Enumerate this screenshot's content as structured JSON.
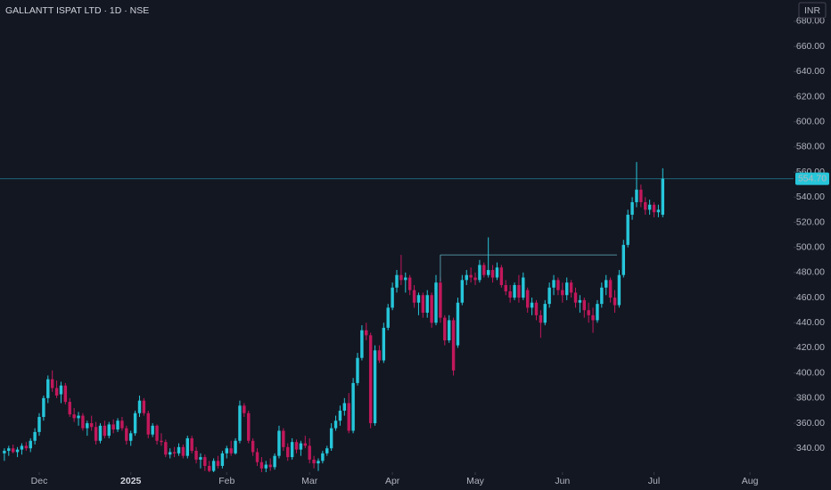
{
  "chart_data": {
    "type": "candlestick",
    "title": "GALLANTT ISPAT LTD · 1D · NSE",
    "currency": "INR",
    "up_color": "#26c6da",
    "down_color": "#c2185b",
    "xlim": [
      -1,
      181
    ],
    "xticks": [
      {
        "value": 8,
        "label": "Dec"
      },
      {
        "value": 29,
        "label": "2025"
      },
      {
        "value": 51,
        "label": "Feb"
      },
      {
        "value": 70,
        "label": "Mar"
      },
      {
        "value": 89,
        "label": "Apr"
      },
      {
        "value": 108,
        "label": "May"
      },
      {
        "value": 128,
        "label": "Jun"
      },
      {
        "value": 149,
        "label": "Jul"
      },
      {
        "value": 171,
        "label": "Aug"
      }
    ],
    "ylim": [
      321,
      697
    ],
    "yticks": [
      {
        "value": 340,
        "label": "340.00"
      },
      {
        "value": 360,
        "label": "360.00"
      },
      {
        "value": 380,
        "label": "380.00"
      },
      {
        "value": 400,
        "label": "400.00"
      },
      {
        "value": 420,
        "label": "420.00"
      },
      {
        "value": 440,
        "label": "440.00"
      },
      {
        "value": 460,
        "label": "460.00"
      },
      {
        "value": 480,
        "label": "480.00"
      },
      {
        "value": 500,
        "label": "500.00"
      },
      {
        "value": 520,
        "label": "520.00"
      },
      {
        "value": 540,
        "label": "540.00"
      },
      {
        "value": 560,
        "label": "560.00"
      },
      {
        "value": 580,
        "label": "580.00"
      },
      {
        "value": 600,
        "label": "600.00"
      },
      {
        "value": 620,
        "label": "620.00"
      },
      {
        "value": 640,
        "label": "640.00"
      },
      {
        "value": 660,
        "label": "660.00"
      },
      {
        "value": 680,
        "label": "680.00"
      }
    ],
    "open": [
      336,
      338,
      340,
      337,
      339,
      342,
      340,
      346,
      353,
      365,
      380,
      395,
      388,
      383,
      390,
      377,
      367,
      364,
      366,
      356,
      360,
      357,
      346,
      358,
      350,
      359,
      355,
      362,
      356,
      346,
      352,
      368,
      378,
      368,
      351,
      358,
      346,
      345,
      335,
      337,
      336,
      341,
      334,
      348,
      338,
      331,
      333,
      326,
      322,
      330,
      326,
      336,
      340,
      336,
      346,
      374,
      368,
      346,
      337,
      329,
      324,
      327,
      325,
      334,
      354,
      341,
      333,
      345,
      339,
      344,
      342,
      331,
      328,
      330,
      336,
      340,
      356,
      362,
      370,
      376,
      354,
      392,
      412,
      434,
      430,
      360,
      418,
      410,
      436,
      452,
      468,
      478,
      474,
      476,
      466,
      456,
      462,
      448,
      462,
      440,
      472,
      444,
      426,
      442,
      422,
      456,
      474,
      478,
      476,
      474,
      486,
      478,
      482,
      476,
      484,
      470,
      465,
      460,
      470,
      460,
      466,
      452,
      456,
      446,
      440,
      455,
      468,
      474,
      466,
      462,
      472,
      464,
      456,
      458,
      450,
      446,
      442,
      455,
      468,
      474,
      460,
      454,
      478,
      502,
      526,
      536,
      546,
      536,
      530,
      534,
      528,
      526
    ],
    "high": [
      340,
      342,
      343,
      341,
      344,
      345,
      348,
      356,
      368,
      382,
      398,
      402,
      394,
      393,
      392,
      380,
      372,
      369,
      368,
      362,
      366,
      361,
      360,
      362,
      361,
      363,
      364,
      365,
      358,
      354,
      370,
      382,
      380,
      370,
      360,
      359,
      352,
      347,
      340,
      341,
      344,
      343,
      350,
      350,
      341,
      336,
      335,
      330,
      332,
      334,
      338,
      342,
      346,
      348,
      378,
      376,
      370,
      348,
      340,
      333,
      330,
      332,
      336,
      358,
      356,
      344,
      348,
      347,
      346,
      350,
      348,
      334,
      332,
      338,
      342,
      360,
      366,
      374,
      380,
      384,
      396,
      416,
      438,
      440,
      432,
      422,
      422,
      440,
      455,
      472,
      482,
      494,
      480,
      478,
      470,
      464,
      464,
      466,
      464,
      478,
      476,
      446,
      446,
      444,
      460,
      478,
      482,
      484,
      480,
      490,
      488,
      508,
      486,
      488,
      486,
      474,
      470,
      472,
      478,
      480,
      468,
      460,
      458,
      450,
      458,
      472,
      478,
      476,
      472,
      476,
      474,
      468,
      462,
      460,
      456,
      452,
      458,
      472,
      478,
      476,
      466,
      482,
      506,
      530,
      540,
      568,
      550,
      540,
      538,
      536,
      534,
      563
    ],
    "low": [
      330,
      334,
      336,
      333,
      335,
      338,
      337,
      343,
      350,
      362,
      376,
      385,
      380,
      376,
      375,
      365,
      361,
      358,
      354,
      350,
      354,
      343,
      344,
      348,
      348,
      352,
      353,
      354,
      343,
      342,
      350,
      365,
      366,
      348,
      349,
      343,
      342,
      333,
      332,
      333,
      334,
      332,
      332,
      336,
      328,
      324,
      322,
      318,
      320,
      324,
      324,
      332,
      334,
      335,
      344,
      365,
      344,
      334,
      326,
      320,
      318,
      322,
      323,
      332,
      338,
      330,
      331,
      336,
      334,
      340,
      328,
      324,
      322,
      328,
      334,
      338,
      354,
      358,
      366,
      352,
      352,
      390,
      410,
      426,
      356,
      358,
      408,
      408,
      434,
      450,
      464,
      470,
      464,
      462,
      452,
      446,
      444,
      444,
      436,
      438,
      440,
      422,
      424,
      398,
      420,
      454,
      470,
      472,
      470,
      472,
      476,
      476,
      472,
      474,
      468,
      462,
      456,
      458,
      456,
      458,
      448,
      446,
      442,
      428,
      438,
      452,
      462,
      462,
      456,
      458,
      460,
      452,
      448,
      444,
      440,
      432,
      440,
      452,
      462,
      456,
      448,
      452,
      476,
      500,
      522,
      532,
      532,
      526,
      526,
      524,
      524,
      524
    ],
    "close": [
      338,
      340,
      337,
      339,
      342,
      340,
      346,
      353,
      365,
      380,
      395,
      388,
      382,
      390,
      377,
      367,
      364,
      366,
      356,
      360,
      357,
      346,
      358,
      350,
      359,
      355,
      362,
      356,
      346,
      352,
      368,
      378,
      368,
      351,
      358,
      346,
      345,
      335,
      337,
      336,
      341,
      334,
      348,
      338,
      331,
      333,
      326,
      322,
      330,
      326,
      336,
      340,
      336,
      346,
      374,
      368,
      346,
      337,
      329,
      324,
      327,
      325,
      334,
      354,
      341,
      333,
      345,
      339,
      344,
      342,
      331,
      328,
      330,
      336,
      340,
      356,
      362,
      370,
      376,
      354,
      392,
      412,
      434,
      430,
      360,
      418,
      410,
      436,
      452,
      468,
      478,
      474,
      476,
      466,
      456,
      462,
      448,
      462,
      440,
      472,
      444,
      426,
      442,
      402,
      456,
      474,
      478,
      476,
      474,
      486,
      478,
      482,
      476,
      484,
      470,
      465,
      460,
      470,
      460,
      476,
      452,
      456,
      446,
      440,
      455,
      468,
      474,
      466,
      462,
      472,
      464,
      456,
      458,
      450,
      446,
      442,
      455,
      468,
      474,
      460,
      454,
      478,
      502,
      526,
      536,
      546,
      536,
      530,
      534,
      528,
      530,
      554.7
    ],
    "last_price": {
      "value": 554.7,
      "label": "554.70"
    },
    "annotation_line": {
      "y": 494,
      "x": [
        100,
        140.5
      ]
    }
  }
}
